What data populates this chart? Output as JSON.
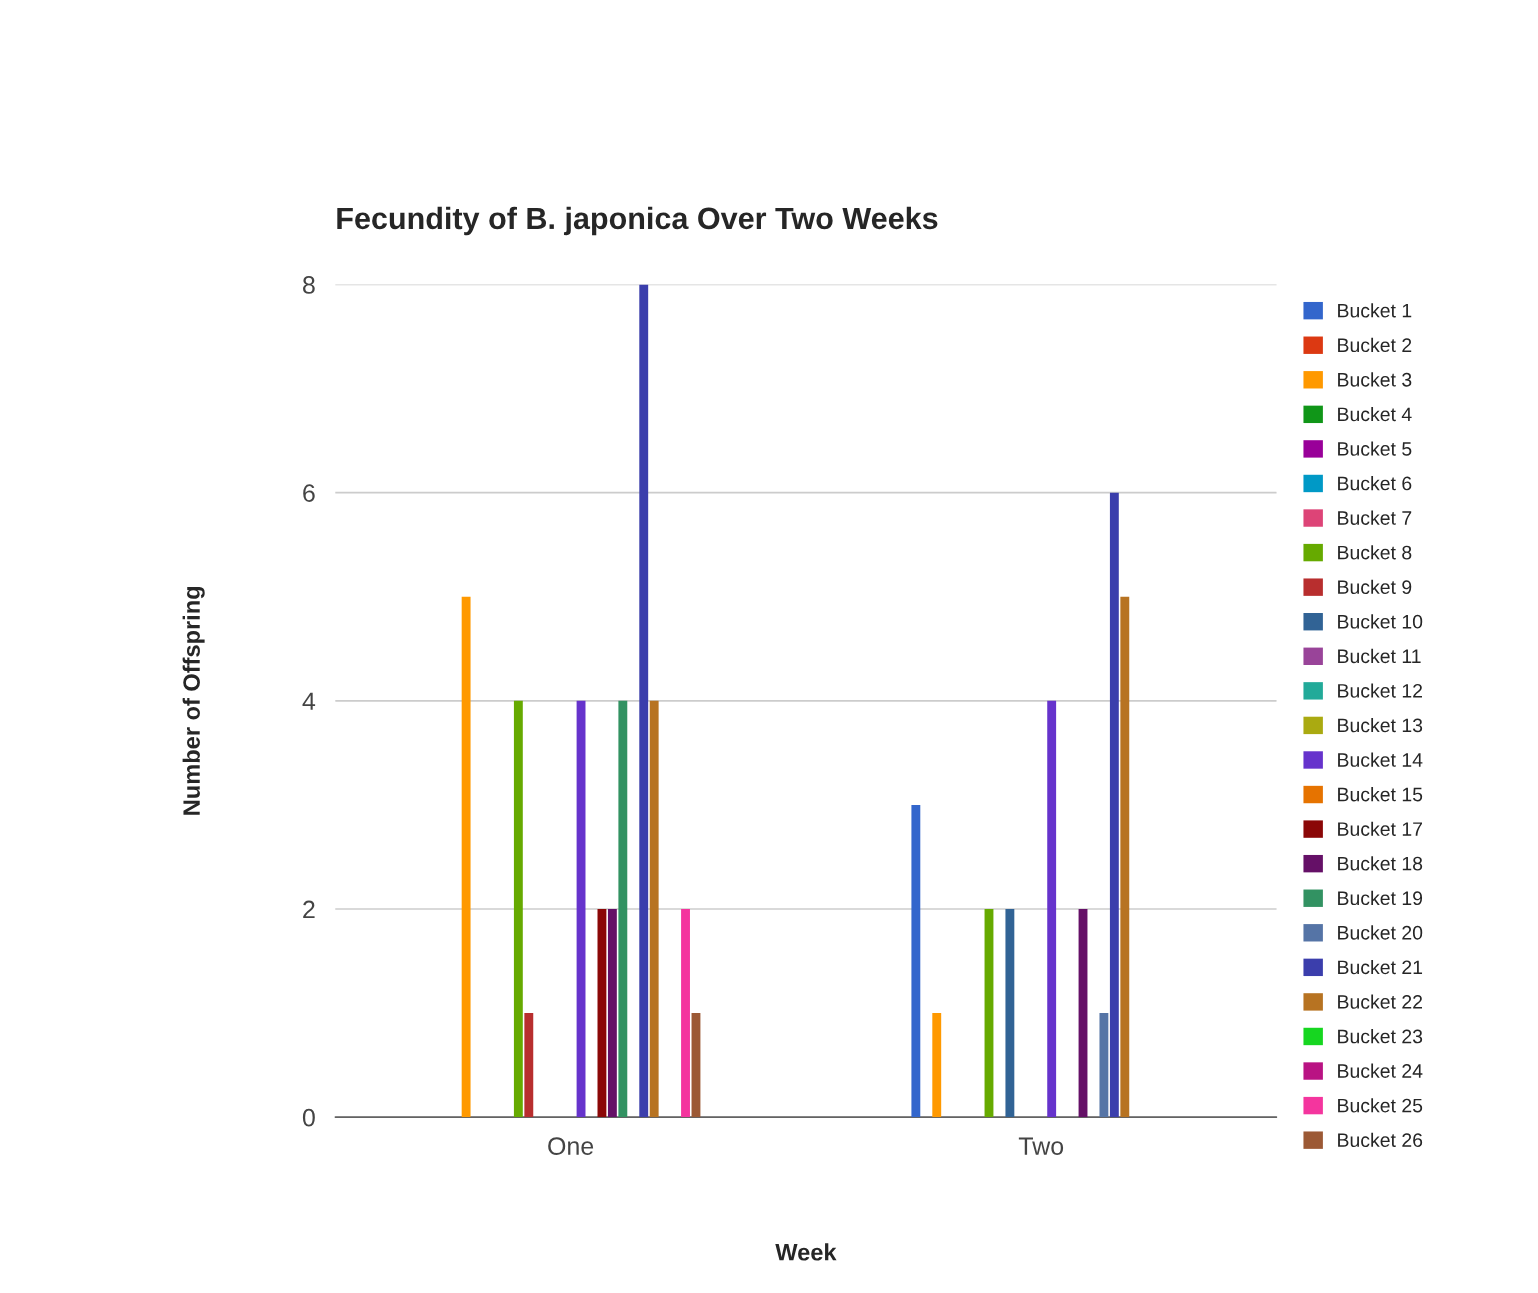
{
  "chart_data": {
    "type": "bar",
    "title": "Fecundity of B. japonica Over Two Weeks",
    "xlabel": "Week",
    "ylabel": "Number of Offspring",
    "categories": [
      "One",
      "Two"
    ],
    "ylim": [
      0,
      8
    ],
    "yticks": [
      0,
      2,
      4,
      6,
      8
    ],
    "grid": "y",
    "legend": "right",
    "series": [
      {
        "name": "Bucket 1",
        "color": "#3366cc",
        "values": [
          null,
          3
        ]
      },
      {
        "name": "Bucket 2",
        "color": "#dc3912",
        "values": [
          null,
          null
        ]
      },
      {
        "name": "Bucket 3",
        "color": "#ff9900",
        "values": [
          5,
          1
        ]
      },
      {
        "name": "Bucket 4",
        "color": "#109618",
        "values": [
          null,
          null
        ]
      },
      {
        "name": "Bucket 5",
        "color": "#990099",
        "values": [
          null,
          null
        ]
      },
      {
        "name": "Bucket 6",
        "color": "#0099c6",
        "values": [
          null,
          null
        ]
      },
      {
        "name": "Bucket 7",
        "color": "#dd4477",
        "values": [
          null,
          null
        ]
      },
      {
        "name": "Bucket 8",
        "color": "#66aa00",
        "values": [
          4,
          2
        ]
      },
      {
        "name": "Bucket 9",
        "color": "#b82e2e",
        "values": [
          1,
          null
        ]
      },
      {
        "name": "Bucket 10",
        "color": "#316395",
        "values": [
          null,
          2
        ]
      },
      {
        "name": "Bucket 11",
        "color": "#994499",
        "values": [
          null,
          null
        ]
      },
      {
        "name": "Bucket 12",
        "color": "#22aa99",
        "values": [
          null,
          null
        ]
      },
      {
        "name": "Bucket 13",
        "color": "#aaaa11",
        "values": [
          null,
          null
        ]
      },
      {
        "name": "Bucket 14",
        "color": "#6633cc",
        "values": [
          4,
          4
        ]
      },
      {
        "name": "Bucket 15",
        "color": "#e67300",
        "values": [
          null,
          null
        ]
      },
      {
        "name": "Bucket 17",
        "color": "#8b0707",
        "values": [
          2,
          null
        ]
      },
      {
        "name": "Bucket 18",
        "color": "#651067",
        "values": [
          2,
          2
        ]
      },
      {
        "name": "Bucket 19",
        "color": "#329262",
        "values": [
          4,
          null
        ]
      },
      {
        "name": "Bucket 20",
        "color": "#5574a6",
        "values": [
          null,
          1
        ]
      },
      {
        "name": "Bucket 21",
        "color": "#3b3eac",
        "values": [
          8,
          6
        ]
      },
      {
        "name": "Bucket 22",
        "color": "#b77322",
        "values": [
          4,
          5
        ]
      },
      {
        "name": "Bucket 23",
        "color": "#16d620",
        "values": [
          null,
          null
        ]
      },
      {
        "name": "Bucket 24",
        "color": "#b91383",
        "values": [
          null,
          null
        ]
      },
      {
        "name": "Bucket 25",
        "color": "#f4359e",
        "values": [
          2,
          null
        ]
      },
      {
        "name": "Bucket 26",
        "color": "#9c5935",
        "values": [
          1,
          null
        ]
      }
    ]
  }
}
